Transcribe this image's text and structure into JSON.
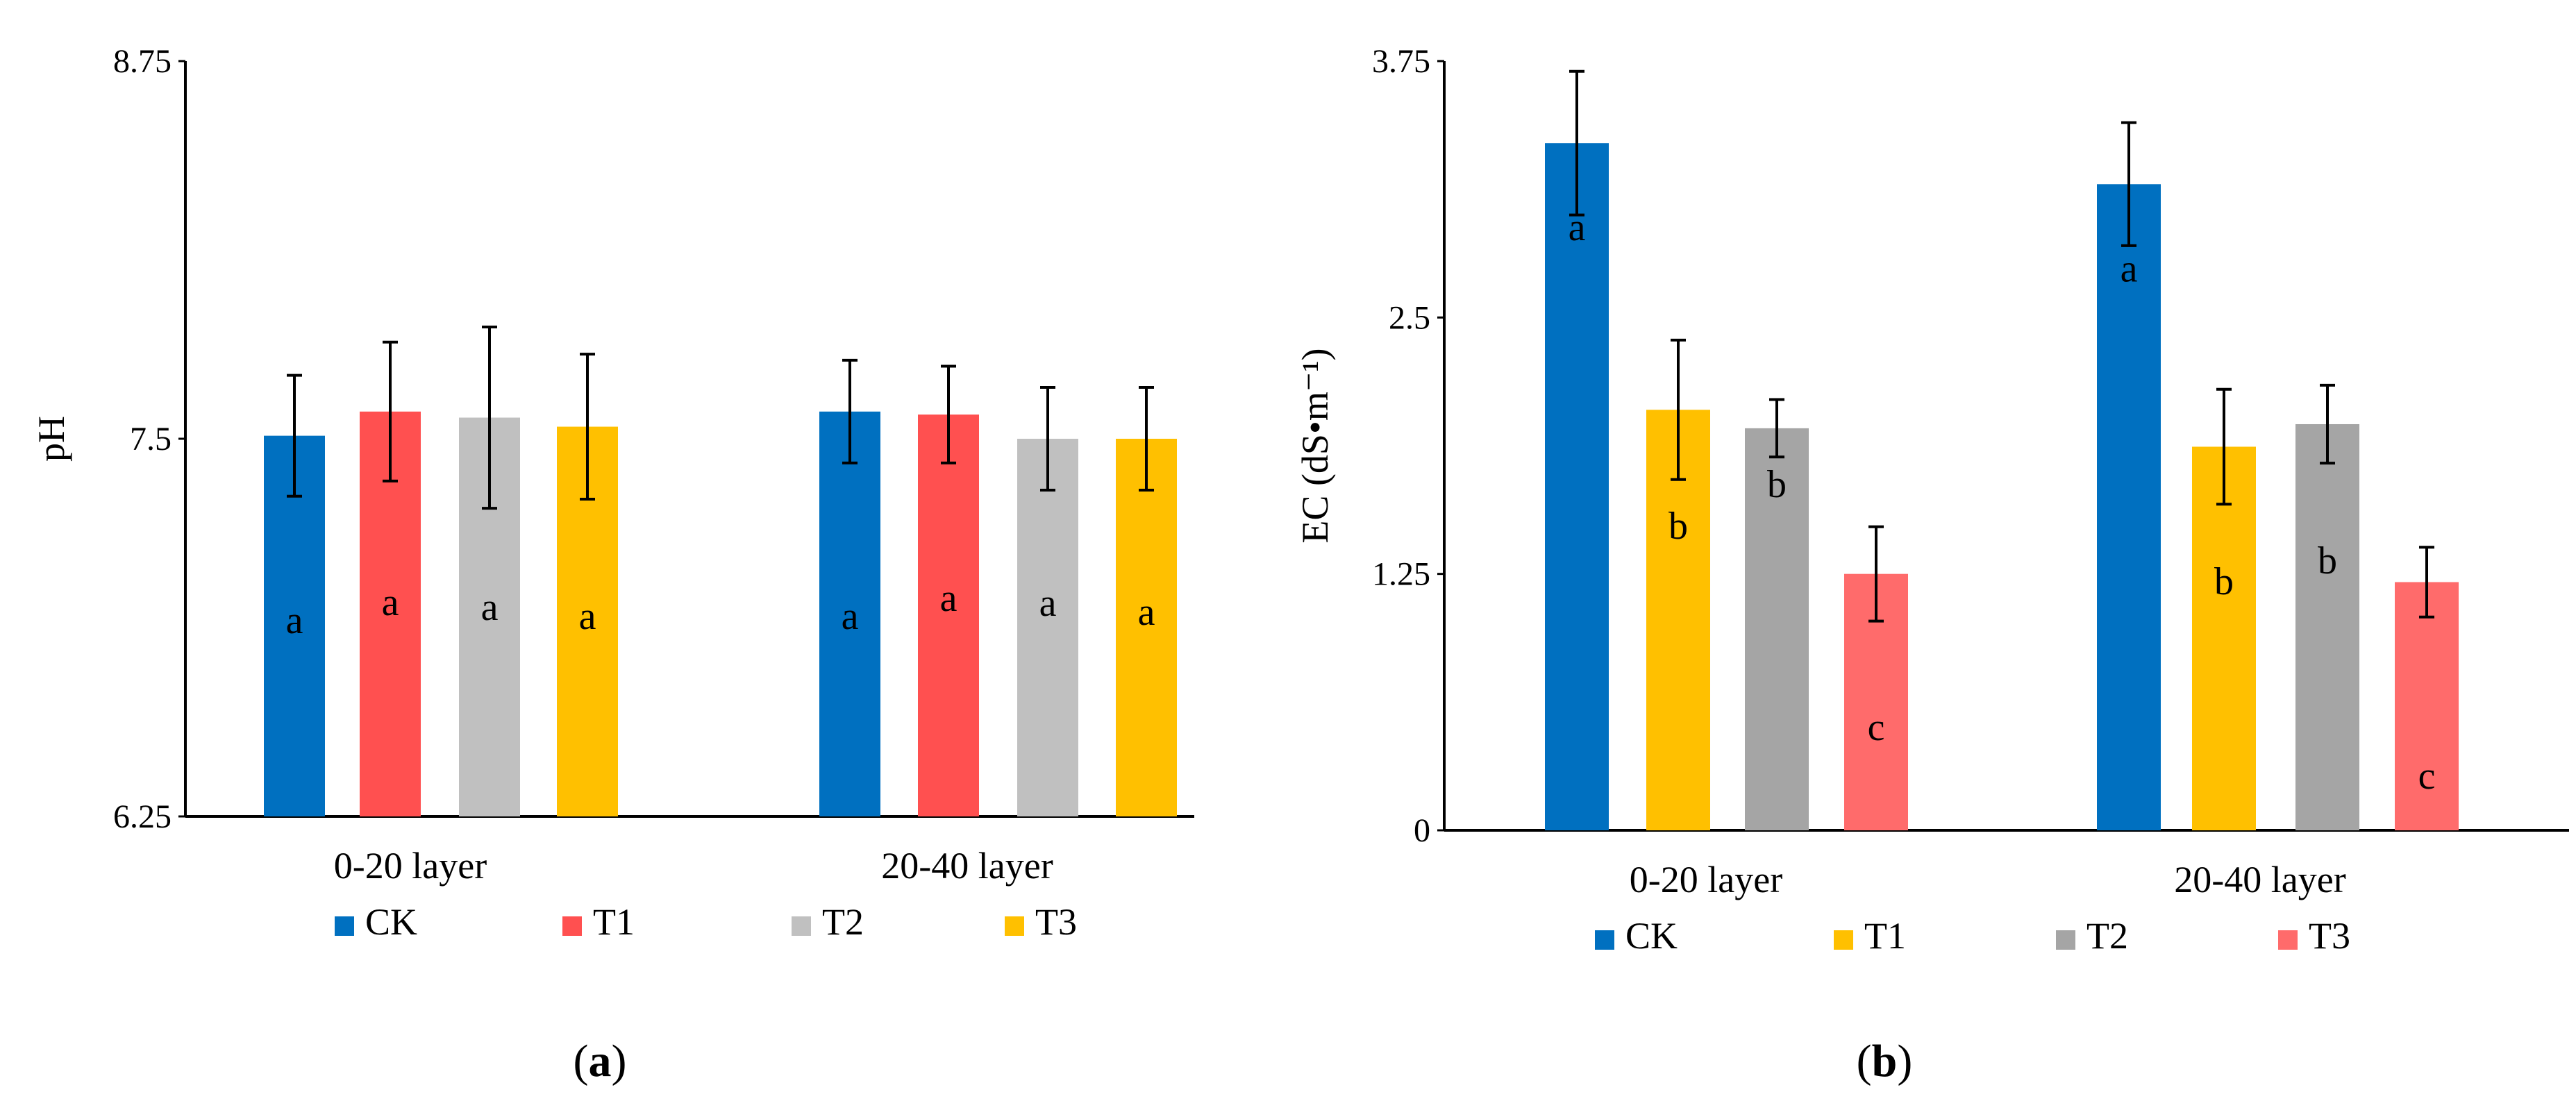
{
  "colors": {
    "CK": "#0070C0",
    "T1a": "#FF5050",
    "T2a": "#C0C0C0",
    "T3a": "#FFC000",
    "T1b": "#FFC000",
    "T2b": "#A5A5A5",
    "T3b": "#FF6B6B"
  },
  "chart_data": [
    {
      "id": "a",
      "type": "bar",
      "panel_label": "a",
      "title": "",
      "ylabel": "pH",
      "xlabel": "",
      "ylim": [
        6.25,
        8.75
      ],
      "yticks": [
        "6.25",
        "7.5",
        "8.75"
      ],
      "categories": [
        "0-20 layer",
        "20-40 layer"
      ],
      "legend_position": "bottom",
      "series": [
        {
          "name": "CK",
          "color": "#0070C0",
          "values": [
            7.51,
            7.59
          ],
          "errors": [
            0.2,
            0.17
          ],
          "letters": [
            "a",
            "a"
          ]
        },
        {
          "name": "T1",
          "color": "#FF5050",
          "values": [
            7.59,
            7.58
          ],
          "errors": [
            0.23,
            0.16
          ],
          "letters": [
            "a",
            "a"
          ]
        },
        {
          "name": "T2",
          "color": "#C0C0C0",
          "values": [
            7.57,
            7.5
          ],
          "errors": [
            0.3,
            0.17
          ],
          "letters": [
            "a",
            "a"
          ]
        },
        {
          "name": "T3",
          "color": "#FFC000",
          "values": [
            7.54,
            7.5
          ],
          "errors": [
            0.24,
            0.17
          ],
          "letters": [
            "a",
            "a"
          ]
        }
      ]
    },
    {
      "id": "b",
      "type": "bar",
      "panel_label": "b",
      "title": "",
      "ylabel": "EC (dS•m⁻¹)",
      "xlabel": "",
      "ylim": [
        0,
        3.75
      ],
      "yticks": [
        "0",
        "1.25",
        "2.5",
        "3.75"
      ],
      "categories": [
        "0-20 layer",
        "20-40 layer"
      ],
      "legend_position": "bottom",
      "series": [
        {
          "name": "CK",
          "color": "#0070C0",
          "values": [
            3.35,
            3.15
          ],
          "errors": [
            0.35,
            0.3
          ],
          "letters": [
            "a",
            "a"
          ]
        },
        {
          "name": "T1",
          "color": "#FFC000",
          "values": [
            2.05,
            1.87
          ],
          "errors": [
            0.34,
            0.28
          ],
          "letters": [
            "b",
            "b"
          ]
        },
        {
          "name": "T2",
          "color": "#A5A5A5",
          "values": [
            1.96,
            1.98
          ],
          "errors": [
            0.14,
            0.19
          ],
          "letters": [
            "b",
            "b"
          ]
        },
        {
          "name": "T3",
          "color": "#FF6B6B",
          "values": [
            1.25,
            1.21
          ],
          "errors": [
            0.23,
            0.17
          ],
          "letters": [
            "c",
            "c"
          ]
        }
      ]
    }
  ]
}
